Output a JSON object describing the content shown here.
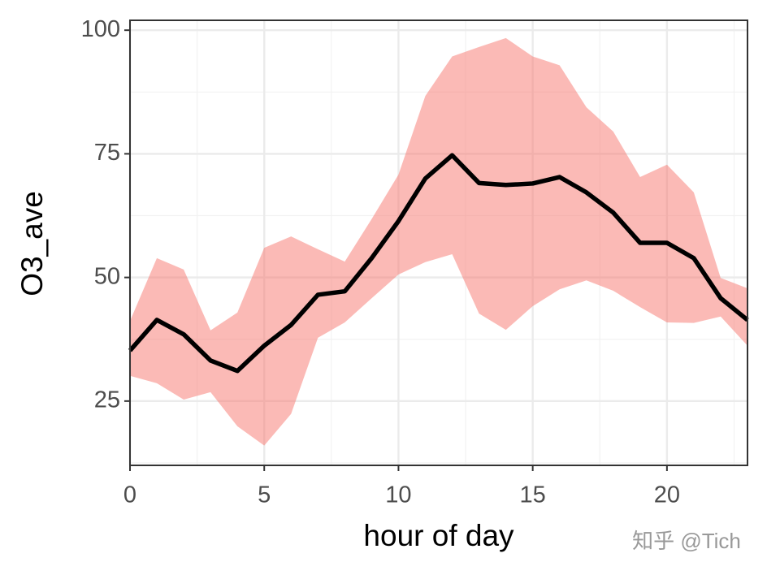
{
  "chart_data": {
    "type": "line_ribbon",
    "x_label": "hour of day",
    "y_label": "O3_ave",
    "annotation": "知乎 @Tich",
    "x": [
      0,
      1,
      2,
      3,
      4,
      5,
      6,
      7,
      8,
      9,
      10,
      11,
      12,
      13,
      14,
      15,
      16,
      17,
      18,
      19,
      20,
      21,
      22,
      23
    ],
    "series": [
      {
        "color": "#000000",
        "fill_color": "#f8766d",
        "values": [
          35.2,
          41.4,
          38.5,
          33.2,
          31.1,
          36.2,
          40.4,
          46.5,
          47.2,
          53.9,
          61.4,
          70.0,
          74.7,
          69.1,
          68.7,
          69.0,
          70.3,
          67.2,
          63.1,
          57.0,
          57.0,
          53.9,
          45.8,
          41.4
        ],
        "upper": [
          41.2,
          53.9,
          51.6,
          39.3,
          42.9,
          56.0,
          58.3,
          55.7,
          53.2,
          61.8,
          70.8,
          86.7,
          94.7,
          96.6,
          98.4,
          94.7,
          92.9,
          84.4,
          79.5,
          70.3,
          72.8,
          67.2,
          49.9,
          47.8
        ],
        "lower": [
          30.1,
          28.6,
          25.3,
          26.8,
          19.9,
          16.0,
          22.4,
          37.8,
          40.9,
          45.8,
          50.6,
          53.1,
          54.7,
          42.7,
          39.4,
          44.2,
          47.6,
          49.4,
          47.3,
          44.0,
          40.9,
          40.8,
          42.1,
          36.2
        ]
      }
    ],
    "xlim": [
      0,
      23
    ],
    "xticks": [
      0,
      5,
      10,
      15,
      20
    ],
    "ylim": [
      12,
      102
    ],
    "yticks": [
      25,
      50,
      75,
      100
    ],
    "grid": true
  }
}
